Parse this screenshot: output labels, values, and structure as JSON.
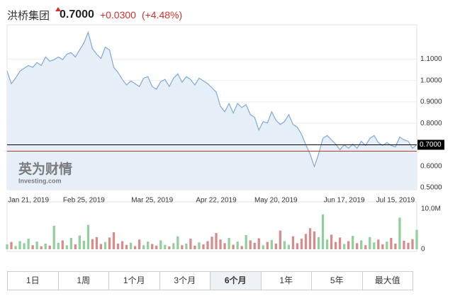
{
  "header": {
    "name": "洪桥集团",
    "price": "0.7000",
    "change": "+0.0300",
    "change_percent": "(+4.48%)"
  },
  "watermark": {
    "brand": "英为财情",
    "site": "Investing.com"
  },
  "chart_data": [
    {
      "type": "area",
      "categories": [
        null,
        null,
        null,
        null,
        null,
        "Jan 21, 2019",
        null,
        null,
        null,
        null,
        null,
        null,
        null,
        null,
        null,
        null,
        null,
        null,
        "Feb 25, 2019",
        null,
        null,
        null,
        null,
        null,
        null,
        null,
        null,
        null,
        null,
        null,
        null,
        null,
        null,
        null,
        "Mar 25, 2019",
        null,
        null,
        null,
        null,
        null,
        null,
        null,
        null,
        null,
        null,
        null,
        null,
        null,
        null,
        "Apr 22, 2019",
        null,
        null,
        null,
        null,
        null,
        null,
        null,
        null,
        null,
        null,
        null,
        null,
        null,
        "May 20, 2019",
        null,
        null,
        null,
        null,
        null,
        null,
        null,
        null,
        null,
        null,
        null,
        null,
        null,
        null,
        null,
        "Jun 17, 2019",
        null,
        null,
        null,
        null,
        null,
        null,
        null,
        null,
        null,
        null,
        null,
        "Jul 15, 2019",
        null,
        null,
        null,
        null,
        null
      ],
      "values": [
        1.044,
        0.985,
        1.011,
        1.044,
        1.057,
        1.07,
        1.061,
        1.084,
        1.07,
        1.11,
        1.09,
        1.097,
        1.11,
        1.097,
        1.123,
        1.13,
        1.11,
        1.143,
        1.175,
        1.225,
        1.149,
        1.123,
        1.103,
        1.156,
        1.143,
        1.061,
        1.038,
        1.005,
        0.979,
        0.998,
        0.985,
        0.972,
        1.011,
        1.018,
        0.972,
        0.959,
        0.995,
        1.005,
        0.972,
        1.011,
        1.031,
        0.992,
        1.018,
        1.005,
        0.979,
        1.011,
        0.998,
        0.985,
        0.966,
        0.946,
        0.88,
        0.854,
        0.893,
        0.848,
        0.893,
        0.874,
        0.887,
        0.841,
        0.828,
        0.769,
        0.808,
        0.802,
        0.854,
        0.815,
        0.795,
        0.808,
        0.841,
        0.795,
        0.782,
        0.749,
        0.7,
        0.657,
        0.598,
        0.657,
        0.73,
        0.743,
        0.723,
        0.703,
        0.677,
        0.7,
        0.684,
        0.703,
        0.684,
        0.716,
        0.697,
        0.73,
        0.743,
        0.71,
        0.697,
        0.71,
        0.697,
        0.69,
        0.736,
        0.723,
        0.716,
        0.684,
        0.7
      ],
      "color": "#7fa9d8",
      "fill_color": "#e6eef7",
      "ylim": [
        0.49,
        1.26
      ],
      "yticks": [
        {
          "value": 0.5,
          "label": "0.5000"
        },
        {
          "value": 0.6,
          "label": "0.6000"
        },
        {
          "value": 0.8,
          "label": "0.8000"
        },
        {
          "value": 0.9,
          "label": "0.9000"
        },
        {
          "value": 1.0,
          "label": "1.0000"
        },
        {
          "value": 1.1,
          "label": "1.1000"
        }
      ],
      "grid": true,
      "reference_lines": [
        {
          "value": 0.7,
          "label": "0.7000",
          "color": "#000000"
        },
        {
          "value": 0.67,
          "color": "#c0392b"
        }
      ]
    },
    {
      "type": "bar",
      "values": [
        1.2,
        1.8,
        0.8,
        2.0,
        1.5,
        2.6,
        1.0,
        1.9,
        0.7,
        1.4,
        0.9,
        5.8,
        1.6,
        2.2,
        1.0,
        2.8,
        1.2,
        3.4,
        2.1,
        6.0,
        2.5,
        3.0,
        1.3,
        1.8,
        2.9,
        4.2,
        1.4,
        2.0,
        1.1,
        1.6,
        0.8,
        2.4,
        1.0,
        1.9,
        1.3,
        0.9,
        2.2,
        1.1,
        0.7,
        1.5,
        3.2,
        1.0,
        1.4,
        2.6,
        0.9,
        1.7,
        1.2,
        2.0,
        3.1,
        4.0,
        2.4,
        1.5,
        2.8,
        1.1,
        1.9,
        0.8,
        3.5,
        2.2,
        1.6,
        2.7,
        1.0,
        1.8,
        2.3,
        1.4,
        4.6,
        2.0,
        1.1,
        3.2,
        1.5,
        2.6,
        3.8,
        5.2,
        4.4,
        3.0,
        8.6,
        2.4,
        3.6,
        1.8,
        2.9,
        1.3,
        2.0,
        3.3,
        1.5,
        2.2,
        1.0,
        3.0,
        1.7,
        2.4,
        1.2,
        1.9,
        2.8,
        1.4,
        7.8,
        2.1,
        1.6,
        2.5,
        4.8
      ],
      "up_color": "#93cf9c",
      "down_color": "#d98a8a",
      "ylim": [
        0,
        11
      ],
      "yticks": [
        {
          "value": 10,
          "label": "10.0M"
        },
        0
      ]
    }
  ],
  "range_buttons": [
    "1日",
    "1周",
    "1个月",
    "3个月",
    "6个月",
    "1年",
    "5年",
    "最大值"
  ],
  "selected_range": 4
}
